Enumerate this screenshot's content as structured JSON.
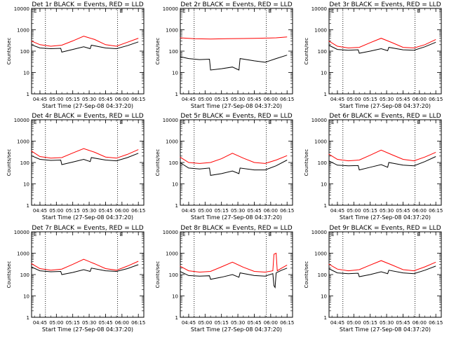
{
  "panel_titles": [
    "Det 1r BLACK = Events, RED = LLD",
    "Det 2r BLACK = Events, RED = LLD",
    "Det 3r BLACK = Events, RED = LLD",
    "Det 4r BLACK = Events, RED = LLD",
    "Det 5r BLACK = Events, RED = LLD",
    "Det 6r BLACK = Events, RED = LLD",
    "Det 7r BLACK = Events, RED = LLD",
    "Det 8r BLACK = Events, RED = LLD",
    "Det 9r BLACK = Events, RED = LLD"
  ],
  "colors": {
    "events": "#000000",
    "lld": "#ff0000",
    "axis": "#000000"
  },
  "chart_data": [
    {
      "type": "line",
      "title": "Det 1r BLACK = Events, RED = LLD",
      "xlabel": "Start Time (27-Sep-08 04:37:20)",
      "ylabel": "Counts/sec",
      "yscale": "log",
      "ylim": [
        1,
        10000
      ],
      "xlim": [
        "04:37:20",
        "06:20:00"
      ],
      "xticks": [
        "04:45",
        "05:00",
        "05:15",
        "05:30",
        "05:45",
        "06:00",
        "06:15"
      ],
      "yticks": [
        "1",
        "10",
        "100",
        "1000",
        "10000"
      ],
      "vlines": [
        "04:50",
        "05:56"
      ],
      "marker": "E",
      "series": [
        {
          "name": "LLD",
          "color": "#ff0000",
          "x": [
            "04:37",
            "04:45",
            "04:55",
            "05:05",
            "05:15",
            "05:25",
            "05:35",
            "05:45",
            "05:55",
            "06:05",
            "06:15"
          ],
          "values": [
            300,
            200,
            170,
            190,
            300,
            500,
            350,
            200,
            170,
            260,
            400
          ]
        },
        {
          "name": "Events",
          "color": "#000000",
          "x": [
            "04:37",
            "04:45",
            "04:55",
            "05:04",
            "05:05",
            "05:15",
            "05:25",
            "05:31",
            "05:32",
            "05:45",
            "05:55",
            "06:05",
            "06:15"
          ],
          "values": [
            200,
            140,
            130,
            135,
            90,
            120,
            160,
            130,
            190,
            140,
            130,
            180,
            270
          ]
        }
      ]
    },
    {
      "type": "line",
      "title": "Det 2r BLACK = Events, RED = LLD",
      "xlabel": "Start Time (27-Sep-08 04:37:20)",
      "ylabel": "Counts/sec",
      "yscale": "log",
      "ylim": [
        1,
        10000
      ],
      "xlim": [
        "04:37:20",
        "06:20:00"
      ],
      "xticks": [
        "04:45",
        "05:00",
        "05:15",
        "05:30",
        "05:45",
        "06:00",
        "06:15"
      ],
      "yticks": [
        "1",
        "10",
        "100",
        "1000",
        "10000"
      ],
      "vlines": [
        "04:50",
        "05:56"
      ],
      "marker": "E",
      "series": [
        {
          "name": "LLD",
          "color": "#ff0000",
          "x": [
            "04:37",
            "04:50",
            "05:05",
            "05:20",
            "05:35",
            "05:50",
            "06:05",
            "06:15"
          ],
          "values": [
            420,
            380,
            370,
            380,
            390,
            400,
            420,
            460
          ]
        },
        {
          "name": "Events",
          "color": "#000000",
          "x": [
            "04:37",
            "04:45",
            "04:55",
            "05:04",
            "05:05",
            "05:15",
            "05:25",
            "05:31",
            "05:32",
            "05:45",
            "05:55",
            "06:05",
            "06:15"
          ],
          "values": [
            55,
            45,
            40,
            42,
            13,
            15,
            18,
            13,
            45,
            35,
            30,
            45,
            65
          ]
        }
      ]
    },
    {
      "type": "line",
      "title": "Det 3r BLACK = Events, RED = LLD",
      "xlabel": "Start Time (27-Sep-08 04:37:20)",
      "ylabel": "Counts/sec",
      "yscale": "log",
      "ylim": [
        1,
        10000
      ],
      "xlim": [
        "04:37:20",
        "06:20:00"
      ],
      "xticks": [
        "04:45",
        "05:00",
        "05:15",
        "05:30",
        "05:45",
        "06:00",
        "06:15"
      ],
      "yticks": [
        "1",
        "10",
        "100",
        "1000",
        "10000"
      ],
      "vlines": [
        "04:50",
        "05:56"
      ],
      "marker": "E",
      "series": [
        {
          "name": "LLD",
          "color": "#ff0000",
          "x": [
            "04:37",
            "04:45",
            "04:55",
            "05:05",
            "05:15",
            "05:25",
            "05:35",
            "05:45",
            "05:55",
            "06:05",
            "06:15"
          ],
          "values": [
            300,
            170,
            140,
            150,
            250,
            400,
            250,
            150,
            140,
            200,
            350
          ]
        },
        {
          "name": "Events",
          "color": "#000000",
          "x": [
            "04:37",
            "04:45",
            "04:55",
            "05:04",
            "05:05",
            "05:15",
            "05:25",
            "05:31",
            "05:32",
            "05:45",
            "05:55",
            "06:05",
            "06:15"
          ],
          "values": [
            190,
            120,
            110,
            115,
            80,
            100,
            130,
            105,
            150,
            115,
            110,
            160,
            260
          ]
        }
      ]
    },
    {
      "type": "line",
      "title": "Det 4r BLACK = Events, RED = LLD",
      "xlabel": "Start Time (27-Sep-08 04:37:20)",
      "ylabel": "Counts/sec",
      "yscale": "log",
      "ylim": [
        1,
        10000
      ],
      "xlim": [
        "04:37:20",
        "06:20:00"
      ],
      "xticks": [
        "04:45",
        "05:00",
        "05:15",
        "05:30",
        "05:45",
        "06:00",
        "06:15"
      ],
      "yticks": [
        "1",
        "10",
        "100",
        "1000",
        "10000"
      ],
      "vlines": [
        "04:50",
        "05:56"
      ],
      "marker": "E",
      "series": [
        {
          "name": "LLD",
          "color": "#ff0000",
          "x": [
            "04:37",
            "04:45",
            "04:55",
            "05:05",
            "05:15",
            "05:25",
            "05:35",
            "05:45",
            "05:55",
            "06:05",
            "06:15"
          ],
          "values": [
            350,
            190,
            160,
            170,
            280,
            450,
            300,
            180,
            160,
            240,
            400
          ]
        },
        {
          "name": "Events",
          "color": "#000000",
          "x": [
            "04:37",
            "04:45",
            "04:55",
            "05:04",
            "05:05",
            "05:15",
            "05:25",
            "05:31",
            "05:32",
            "05:45",
            "05:55",
            "06:05",
            "06:15"
          ],
          "values": [
            210,
            140,
            125,
            130,
            80,
            105,
            140,
            110,
            170,
            130,
            120,
            170,
            270
          ]
        }
      ]
    },
    {
      "type": "line",
      "title": "Det 5r BLACK = Events, RED = LLD",
      "xlabel": "Start Time (27-Sep-08 04:37:20)",
      "ylabel": "Counts/sec",
      "yscale": "log",
      "ylim": [
        1,
        10000
      ],
      "xlim": [
        "04:37:20",
        "06:20:00"
      ],
      "xticks": [
        "04:45",
        "05:00",
        "05:15",
        "05:30",
        "05:45",
        "06:00",
        "06:15"
      ],
      "yticks": [
        "1",
        "10",
        "100",
        "1000",
        "10000"
      ],
      "vlines": [
        "04:50",
        "05:56"
      ],
      "marker": "E",
      "series": [
        {
          "name": "LLD",
          "color": "#ff0000",
          "x": [
            "04:37",
            "04:45",
            "04:55",
            "05:05",
            "05:15",
            "05:25",
            "05:35",
            "05:45",
            "05:55",
            "06:05",
            "06:15"
          ],
          "values": [
            180,
            100,
            90,
            100,
            150,
            270,
            160,
            100,
            90,
            130,
            210
          ]
        },
        {
          "name": "Events",
          "color": "#000000",
          "x": [
            "04:37",
            "04:45",
            "04:55",
            "05:04",
            "05:05",
            "05:15",
            "05:25",
            "05:31",
            "05:32",
            "05:45",
            "05:55",
            "06:05",
            "06:15"
          ],
          "values": [
            100,
            55,
            50,
            55,
            25,
            30,
            40,
            30,
            55,
            45,
            45,
            70,
            130
          ]
        }
      ]
    },
    {
      "type": "line",
      "title": "Det 6r BLACK = Events, RED = LLD",
      "xlabel": "Start Time (27-Sep-08 04:37:20)",
      "ylabel": "Counts/sec",
      "yscale": "log",
      "ylim": [
        1,
        10000
      ],
      "xlim": [
        "04:37:20",
        "06:20:00"
      ],
      "xticks": [
        "04:45",
        "05:00",
        "05:15",
        "05:30",
        "05:45",
        "06:00",
        "06:15"
      ],
      "yticks": [
        "1",
        "10",
        "100",
        "1000",
        "10000"
      ],
      "vlines": [
        "04:50",
        "05:56"
      ],
      "marker": "E",
      "series": [
        {
          "name": "LLD",
          "color": "#ff0000",
          "x": [
            "04:37",
            "04:45",
            "04:55",
            "05:05",
            "05:15",
            "05:25",
            "05:35",
            "05:45",
            "05:55",
            "06:05",
            "06:15"
          ],
          "values": [
            250,
            140,
            120,
            130,
            220,
            380,
            230,
            140,
            120,
            180,
            300
          ]
        },
        {
          "name": "Events",
          "color": "#000000",
          "x": [
            "04:37",
            "04:45",
            "04:55",
            "05:04",
            "05:05",
            "05:15",
            "05:25",
            "05:31",
            "05:32",
            "05:45",
            "05:55",
            "06:05",
            "06:15"
          ],
          "values": [
            120,
            75,
            70,
            72,
            45,
            60,
            80,
            60,
            100,
            75,
            70,
            110,
            190
          ]
        }
      ]
    },
    {
      "type": "line",
      "title": "Det 7r BLACK = Events, RED = LLD",
      "xlabel": "Start Time (27-Sep-08 04:37:20)",
      "ylabel": "Counts/sec",
      "yscale": "log",
      "ylim": [
        1,
        10000
      ],
      "xlim": [
        "04:37:20",
        "06:20:00"
      ],
      "xticks": [
        "04:45",
        "05:00",
        "05:15",
        "05:30",
        "05:45",
        "06:00",
        "06:15"
      ],
      "yticks": [
        "1",
        "10",
        "100",
        "1000",
        "10000"
      ],
      "vlines": [
        "04:50",
        "05:56"
      ],
      "marker": "E",
      "series": [
        {
          "name": "LLD",
          "color": "#ff0000",
          "x": [
            "04:37",
            "04:45",
            "04:55",
            "05:05",
            "05:15",
            "05:25",
            "05:35",
            "05:45",
            "05:55",
            "06:05",
            "06:15"
          ],
          "values": [
            330,
            190,
            160,
            180,
            300,
            520,
            320,
            190,
            160,
            250,
            420
          ]
        },
        {
          "name": "Events",
          "color": "#000000",
          "x": [
            "04:37",
            "04:45",
            "04:55",
            "05:04",
            "05:05",
            "05:15",
            "05:25",
            "05:31",
            "05:32",
            "05:45",
            "05:55",
            "06:05",
            "06:15"
          ],
          "values": [
            230,
            150,
            135,
            140,
            100,
            125,
            170,
            140,
            200,
            150,
            140,
            190,
            290
          ]
        }
      ]
    },
    {
      "type": "line",
      "title": "Det 8r BLACK = Events, RED = LLD",
      "xlabel": "Start Time (27-Sep-08 04:37:20)",
      "ylabel": "Counts/sec",
      "yscale": "log",
      "ylim": [
        1,
        10000
      ],
      "xlim": [
        "04:37:20",
        "06:20:00"
      ],
      "xticks": [
        "04:45",
        "05:00",
        "05:15",
        "05:30",
        "05:45",
        "06:00",
        "06:15"
      ],
      "yticks": [
        "1",
        "10",
        "100",
        "1000",
        "10000"
      ],
      "vlines": [
        "04:50",
        "05:56"
      ],
      "marker": "E",
      "series": [
        {
          "name": "LLD",
          "color": "#ff0000",
          "x": [
            "04:37",
            "04:45",
            "04:55",
            "05:05",
            "05:15",
            "05:25",
            "05:35",
            "05:45",
            "05:55",
            "06:02",
            "06:03",
            "06:05",
            "06:06",
            "06:10",
            "06:15"
          ],
          "values": [
            250,
            150,
            130,
            140,
            230,
            380,
            220,
            140,
            130,
            150,
            900,
            1000,
            150,
            200,
            280
          ]
        },
        {
          "name": "Events",
          "color": "#000000",
          "x": [
            "04:37",
            "04:45",
            "04:55",
            "05:04",
            "05:05",
            "05:15",
            "05:25",
            "05:31",
            "05:32",
            "05:45",
            "05:55",
            "06:02",
            "06:03",
            "06:04",
            "06:05",
            "06:10",
            "06:15"
          ],
          "values": [
            140,
            90,
            85,
            88,
            60,
            75,
            100,
            75,
            120,
            90,
            85,
            110,
            30,
            25,
            120,
            160,
            200
          ]
        }
      ]
    },
    {
      "type": "line",
      "title": "Det 9r BLACK = Events, RED = LLD",
      "xlabel": "Start Time (27-Sep-08 04:37:20)",
      "ylabel": "Counts/sec",
      "yscale": "log",
      "ylim": [
        1,
        10000
      ],
      "xlim": [
        "04:37:20",
        "06:20:00"
      ],
      "xticks": [
        "04:45",
        "05:00",
        "05:15",
        "05:30",
        "05:45",
        "06:00",
        "06:15"
      ],
      "yticks": [
        "1",
        "10",
        "100",
        "1000",
        "10000"
      ],
      "vlines": [
        "04:50",
        "05:56"
      ],
      "marker": "E",
      "series": [
        {
          "name": "LLD",
          "color": "#ff0000",
          "x": [
            "04:37",
            "04:45",
            "04:55",
            "05:05",
            "05:15",
            "05:25",
            "05:35",
            "05:45",
            "05:55",
            "06:05",
            "06:15"
          ],
          "values": [
            310,
            180,
            150,
            170,
            280,
            450,
            280,
            170,
            150,
            230,
            380
          ]
        },
        {
          "name": "Events",
          "color": "#000000",
          "x": [
            "04:37",
            "04:45",
            "04:55",
            "05:04",
            "05:05",
            "05:15",
            "05:25",
            "05:31",
            "05:32",
            "05:45",
            "05:55",
            "06:05",
            "06:15"
          ],
          "values": [
            190,
            120,
            110,
            115,
            80,
            100,
            135,
            110,
            160,
            120,
            110,
            160,
            250
          ]
        }
      ]
    }
  ]
}
